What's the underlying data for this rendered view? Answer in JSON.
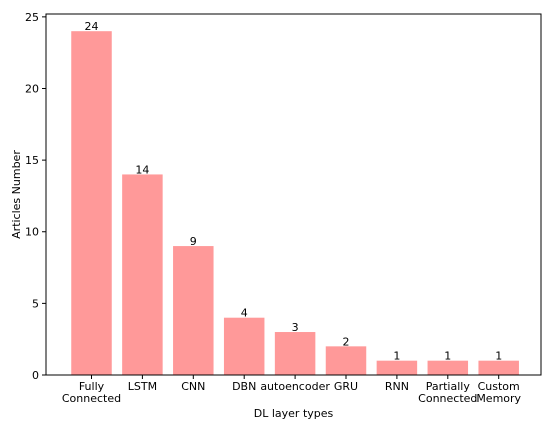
{
  "chart_data": {
    "type": "bar",
    "categories": [
      "Fully\nConnected",
      "LSTM",
      "CNN",
      "DBN",
      "autoencoder",
      "GRU",
      "RNN",
      "Partially\nConnected",
      "Custom\nMemory"
    ],
    "values": [
      24,
      14,
      9,
      4,
      3,
      2,
      1,
      1,
      1
    ],
    "data_labels": [
      "24",
      "14",
      "9",
      "4",
      "3",
      "2",
      "1",
      "1",
      "1"
    ],
    "xlabel": "DL layer types",
    "ylabel": "Articles Number",
    "ylim": [
      0,
      25.2
    ],
    "yticks": [
      0,
      5,
      10,
      15,
      20,
      25
    ],
    "bar_color": "#ff9999",
    "grid": false,
    "legend": "none"
  }
}
